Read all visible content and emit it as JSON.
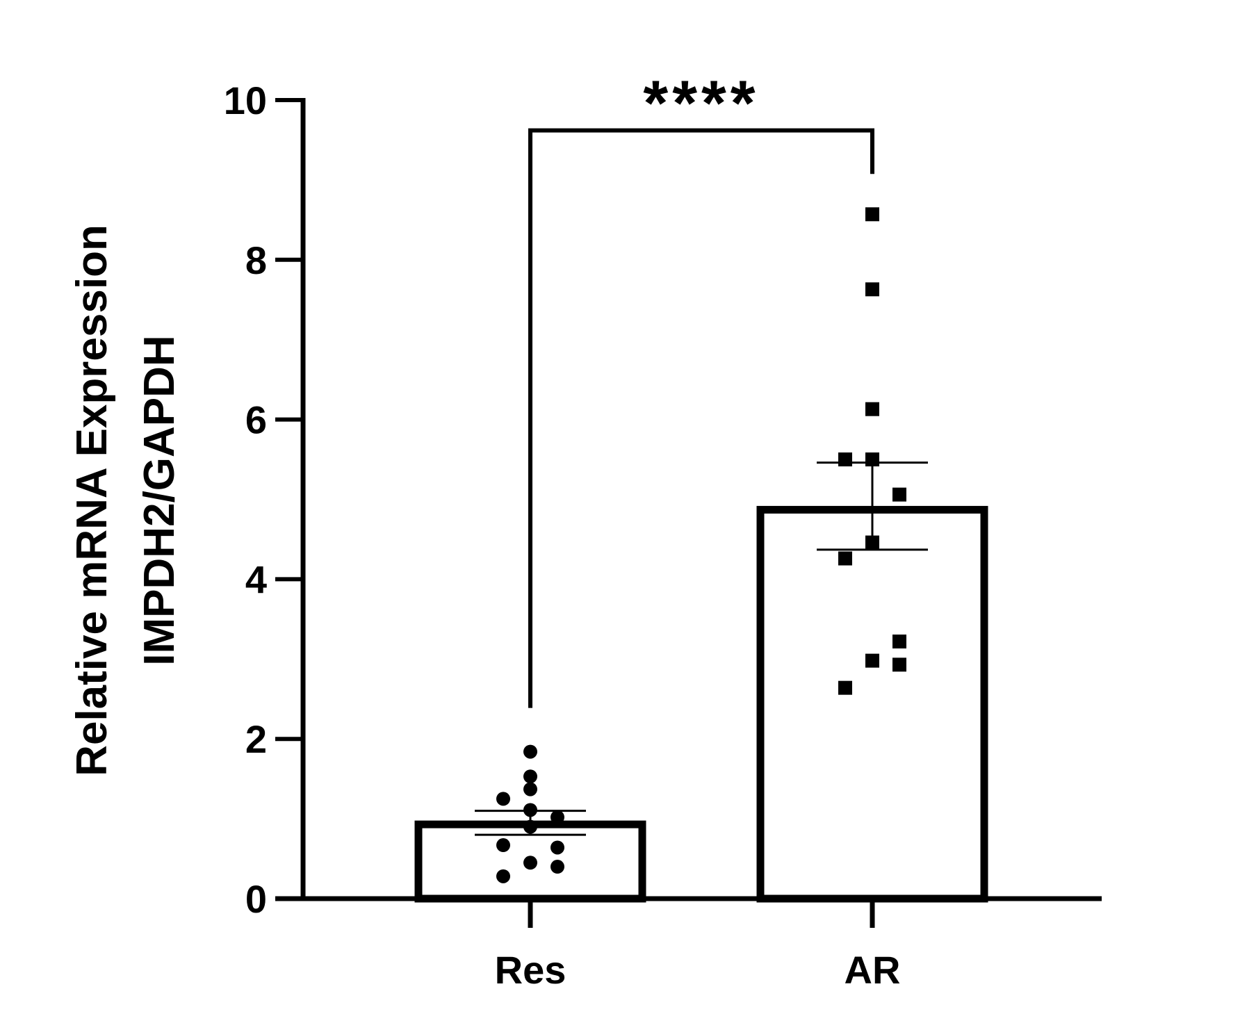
{
  "chart_data": {
    "type": "bar",
    "categories": [
      "Res",
      "AR"
    ],
    "ylabel_line1": "Relative mRNA Expression",
    "ylabel_line2": "IMPDH2/GAPDH",
    "xlabel": "",
    "ylim": [
      0,
      10
    ],
    "yticks": [
      0,
      2,
      4,
      6,
      8,
      10
    ],
    "ytick_labels": [
      "0",
      "2",
      "4",
      "6",
      "8",
      "10"
    ],
    "grid": false,
    "series": [
      {
        "category": "Res",
        "mean": 0.93,
        "error_low": 0.8,
        "error_high": 1.1,
        "marker": "circle",
        "points": [
          1.84,
          1.53,
          1.37,
          1.25,
          1.11,
          1.02,
          0.9,
          0.67,
          0.64,
          0.45,
          0.4,
          0.28
        ]
      },
      {
        "category": "AR",
        "mean": 4.87,
        "error_low": 4.37,
        "error_high": 5.46,
        "marker": "square",
        "points": [
          8.57,
          7.63,
          6.13,
          5.5,
          5.5,
          5.06,
          4.46,
          4.26,
          3.22,
          2.98,
          2.93,
          2.64
        ]
      }
    ],
    "comparison": {
      "from": "Res",
      "to": "AR",
      "y": 9.62,
      "label": "****"
    }
  }
}
